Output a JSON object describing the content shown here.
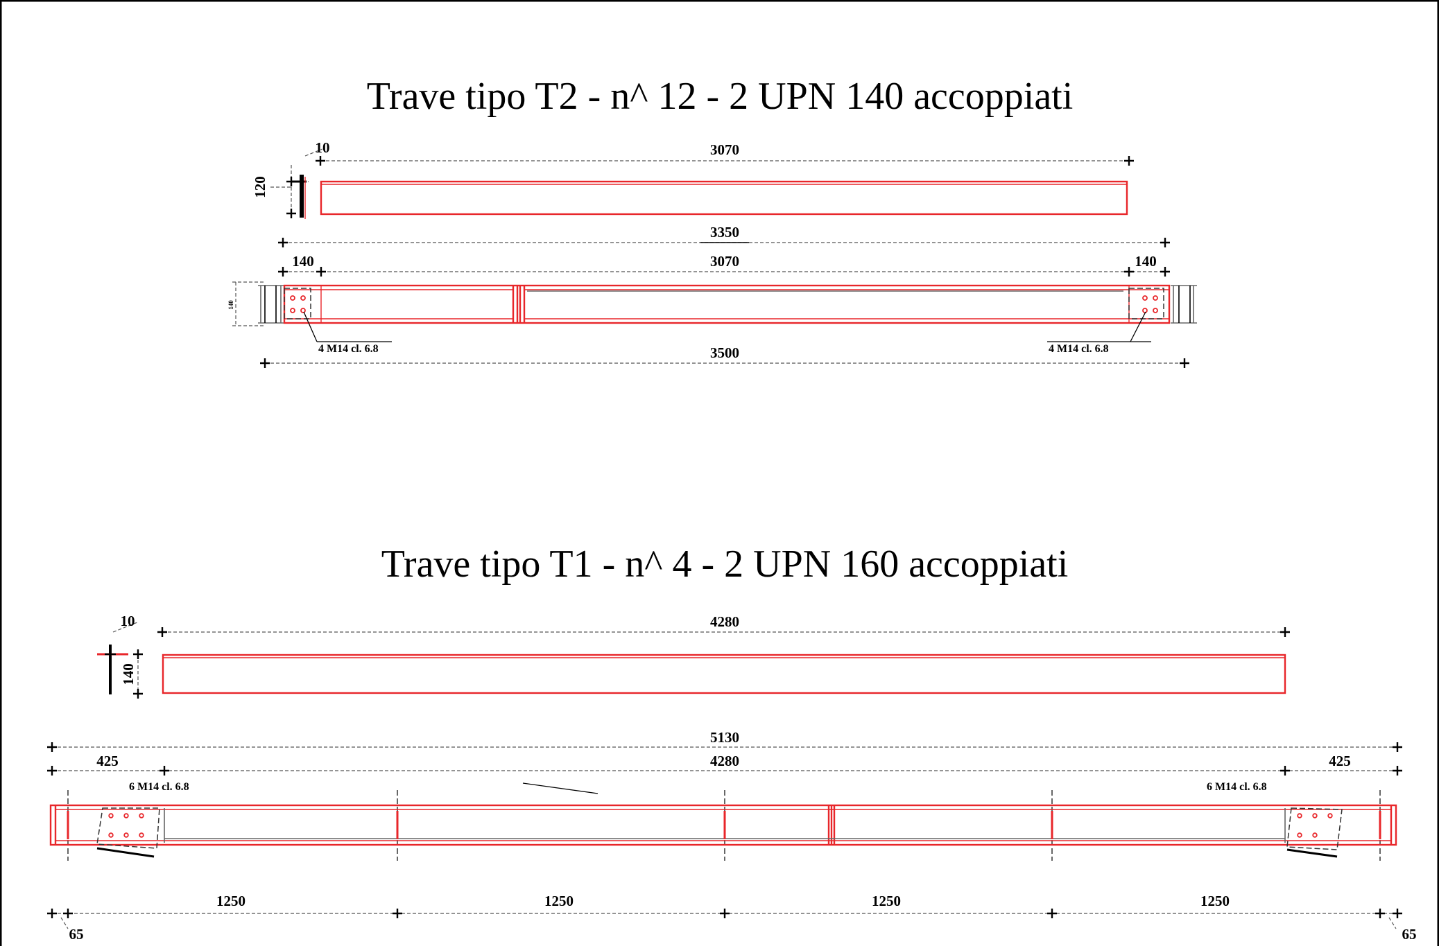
{
  "drawing_t2": {
    "title": "Trave  tipo T2 - n^ 12  - 2 UPN 140 accoppiati",
    "dims": {
      "plate_thickness": "10",
      "section_height": "120",
      "beam_length": "3070",
      "overall_length": "3350",
      "left_end": "140",
      "inner_length": "3070",
      "right_end": "140",
      "small_height": "140",
      "total_span": "3500"
    },
    "bolt_left": "4 M14 cl. 6.8",
    "bolt_right": "4 M14 cl. 6.8"
  },
  "drawing_t1": {
    "title": "Trave  tipo T1 - n^ 4  - 2 UPN 160 accoppiati",
    "dims": {
      "plate_thickness": "10",
      "section_height": "140",
      "beam_length": "4280",
      "overall_length": "5130",
      "left_offset": "425",
      "inner_length": "4280",
      "right_offset": "425",
      "spacing": [
        "1250",
        "1250",
        "1250",
        "1250"
      ],
      "end_left": "65",
      "end_right": "65"
    },
    "bolt_left": "6 M14 cl. 6.8",
    "bolt_right": "6 M14 cl. 6.8"
  },
  "colors": {
    "steel": "#e8262a",
    "dimension": "#000000"
  }
}
